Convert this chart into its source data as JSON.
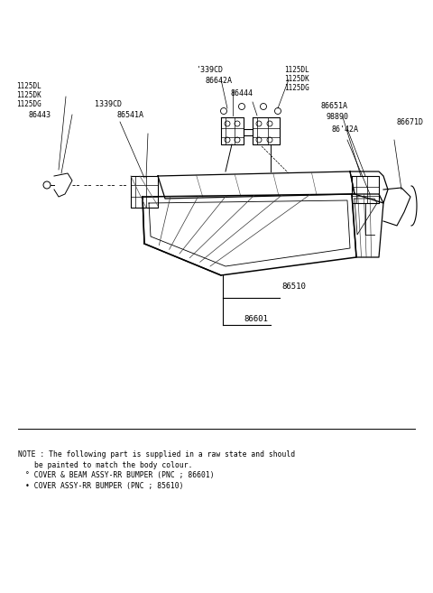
{
  "bg_color": "#ffffff",
  "line_color": "#000000",
  "fig_width": 4.8,
  "fig_height": 6.57,
  "note_line1": "NOTE : The following part is supplied in a raw state and should",
  "note_line2": "be painted to match the body colour.",
  "note_line3": "° COVER & BEAM ASSY-RR BUMPER (PNC ; 86601)",
  "note_line4": "• COVER ASSY-RR BUMPER (PNC ; 85610)"
}
